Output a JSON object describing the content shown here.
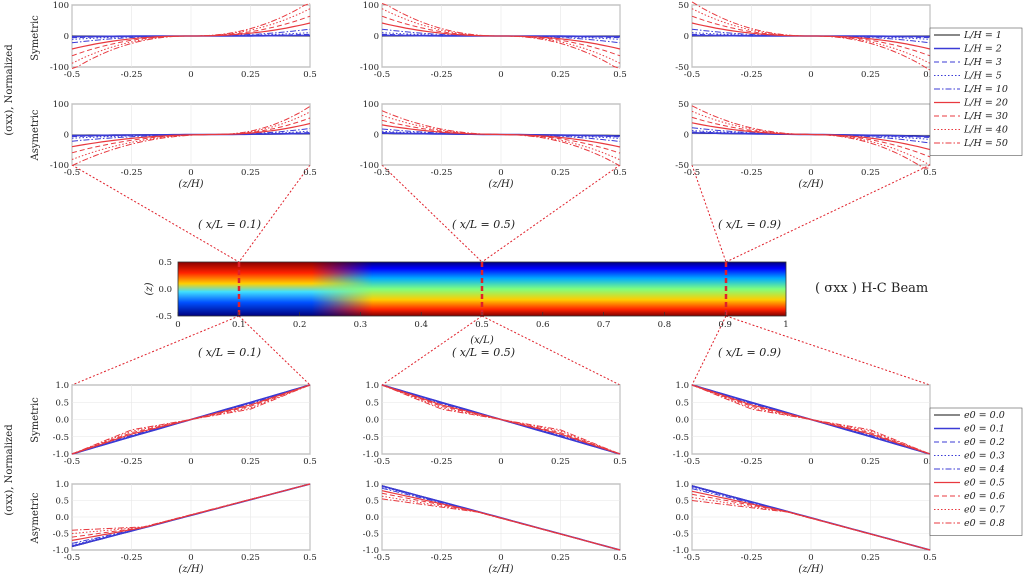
{
  "figure": {
    "top_ylabel": "(σxx), Normalized",
    "bottom_ylabel": "(σxx), Normalized",
    "row_labels": {
      "top_1": "Symetric",
      "top_2": "Asymetric",
      "bottom_1": "Symetric",
      "bottom_2": "Asymetric"
    },
    "x_axis_label": "(z/H)",
    "beam_title": "( σxx ) H-C Beam",
    "beam_xlabel": "(x/L)",
    "beam_ylabel": "(z)",
    "section_labels": [
      "( x/L = 0.1)",
      "( x/L = 0.5)",
      "( x/L = 0.9)"
    ]
  },
  "colors": {
    "blue": "#3b3bd6",
    "red": "#e8393f",
    "black": "#111111",
    "cut": "#e0202a"
  },
  "legend_LH": [
    "L/H = 1",
    "L/H = 2",
    "L/H = 3",
    "L/H = 5",
    "L/H = 10",
    "L/H = 20",
    "L/H = 30",
    "L/H = 40",
    "L/H = 50"
  ],
  "legend_e0": [
    "e0 = 0.0",
    "e0 = 0.1",
    "e0 = 0.2",
    "e0 = 0.3",
    "e0 = 0.4",
    "e0 = 0.5",
    "e0 = 0.6",
    "e0 = 0.7",
    "e0 = 0.8"
  ],
  "chart_data": [
    {
      "type": "line",
      "panel": "top-symmetric-x0.1",
      "x_range": [
        -0.5,
        0.5
      ],
      "ylim": [
        -100,
        100
      ],
      "xticks": [
        "-0.5",
        "-0.25",
        "0",
        "0.25",
        "0.5"
      ],
      "yticks": [
        "100",
        "0",
        "-100"
      ],
      "series": [
        {
          "name": "L/H = 1",
          "x": [
            -0.5,
            0,
            0.5
          ],
          "values": [
            0,
            0,
            0
          ]
        },
        {
          "name": "L/H = 20",
          "x": [
            -0.5,
            0,
            0.5
          ],
          "values": [
            -35,
            0,
            35
          ]
        },
        {
          "name": "L/H = 50",
          "x": [
            -0.5,
            0,
            0.5
          ],
          "values": [
            -110,
            0,
            110
          ]
        }
      ]
    },
    {
      "type": "line",
      "panel": "top-symmetric-x0.5",
      "x_range": [
        -0.5,
        0.5
      ],
      "ylim": [
        -100,
        100
      ],
      "xticks": [
        "-0.5",
        "-0.25",
        "0",
        "0.25",
        "0.5"
      ],
      "yticks": [
        "100",
        "0",
        "-100"
      ],
      "series": [
        {
          "name": "L/H = 1",
          "x": [
            -0.5,
            0,
            0.5
          ],
          "values": [
            0,
            0,
            0
          ]
        },
        {
          "name": "L/H = 20",
          "x": [
            -0.5,
            0,
            0.5
          ],
          "values": [
            35,
            0,
            -35
          ]
        },
        {
          "name": "L/H = 50",
          "x": [
            -0.5,
            0,
            0.5
          ],
          "values": [
            110,
            0,
            -110
          ]
        }
      ]
    },
    {
      "type": "line",
      "panel": "top-symmetric-x0.9",
      "x_range": [
        -0.5,
        0.5
      ],
      "ylim": [
        -50,
        50
      ],
      "xticks": [
        "-0.5",
        "-0.25",
        "0",
        "0.25",
        "0.5"
      ],
      "yticks": [
        "50",
        "0",
        "-50"
      ],
      "series": [
        {
          "name": "L/H = 1",
          "x": [
            -0.5,
            0,
            0.5
          ],
          "values": [
            0,
            0,
            0
          ]
        },
        {
          "name": "L/H = 50",
          "x": [
            -0.5,
            0,
            0.5
          ],
          "values": [
            55,
            0,
            -55
          ]
        }
      ]
    },
    {
      "type": "line",
      "panel": "top-asymmetric-x0.1",
      "x_range": [
        -0.5,
        0.5
      ],
      "ylim": [
        -100,
        100
      ],
      "xticks": [
        "-0.5",
        "-0.25",
        "0",
        "0.25",
        "0.5"
      ],
      "yticks": [
        "100",
        "0",
        "-100"
      ],
      "series": [
        {
          "name": "L/H = 1",
          "x": [
            -0.5,
            0.1,
            0.5
          ],
          "values": [
            -2,
            0,
            2
          ]
        },
        {
          "name": "L/H = 50",
          "x": [
            -0.5,
            0.1,
            0.5
          ],
          "values": [
            -100,
            0,
            90
          ]
        }
      ]
    },
    {
      "type": "line",
      "panel": "top-asymmetric-x0.5",
      "x_range": [
        -0.5,
        0.5
      ],
      "ylim": [
        -100,
        100
      ],
      "xticks": [
        "-0.5",
        "-0.25",
        "0",
        "0.25",
        "0.5"
      ],
      "yticks": [
        "100",
        "0",
        "-100"
      ],
      "series": [
        {
          "name": "L/H = 1",
          "x": [
            -0.5,
            0,
            0.5
          ],
          "values": [
            3,
            0,
            -3
          ]
        },
        {
          "name": "L/H = 50",
          "x": [
            -0.5,
            0,
            0.5
          ],
          "values": [
            75,
            0,
            -100
          ]
        }
      ]
    },
    {
      "type": "line",
      "panel": "top-asymmetric-x0.9",
      "x_range": [
        -0.5,
        0.5
      ],
      "ylim": [
        -50,
        50
      ],
      "xticks": [
        "-0.5",
        "-0.25",
        "0",
        "0.25",
        "0.5"
      ],
      "yticks": [
        "50",
        "0",
        "-50"
      ],
      "series": [
        {
          "name": "L/H = 1",
          "x": [
            -0.5,
            0,
            0.5
          ],
          "values": [
            2,
            0,
            -2
          ]
        },
        {
          "name": "L/H = 50",
          "x": [
            -0.5,
            0,
            0.5
          ],
          "values": [
            45,
            0,
            -60
          ]
        }
      ]
    },
    {
      "type": "heatmap",
      "panel": "beam-sigma-xx",
      "xlim": [
        0,
        1
      ],
      "ylim": [
        -0.5,
        0.5
      ],
      "xticks": [
        "0",
        "0.1",
        "0.2",
        "0.3",
        "0.4",
        "0.5",
        "0.6",
        "0.7",
        "0.8",
        "0.9",
        "1"
      ],
      "yticks": [
        "0.5",
        "0.0",
        "-0.5"
      ],
      "sections_x": [
        0.1,
        0.5,
        0.9
      ]
    },
    {
      "type": "line",
      "panel": "bottom-symmetric-x0.1",
      "x_range": [
        -0.5,
        0.5
      ],
      "ylim": [
        -1,
        1
      ],
      "xticks": [
        "-0.5",
        "-0.25",
        "0",
        "0.25",
        "0.5"
      ],
      "yticks": [
        "1.0",
        "0.5",
        "0.0",
        "-0.5",
        "-1.0"
      ],
      "series": [
        {
          "name": "e0 = 0.0",
          "x": [
            -0.5,
            0,
            0.5
          ],
          "values": [
            -1,
            0,
            1
          ]
        },
        {
          "name": "e0 = 0.8",
          "x": [
            -0.5,
            -0.25,
            0,
            0.25,
            0.5
          ],
          "values": [
            -1,
            -0.3,
            0,
            0.3,
            1
          ]
        }
      ]
    },
    {
      "type": "line",
      "panel": "bottom-symmetric-x0.5",
      "x_range": [
        -0.5,
        0.5
      ],
      "ylim": [
        -1,
        1
      ],
      "xticks": [
        "-0.5",
        "-0.25",
        "0",
        "0.25",
        "0.5"
      ],
      "yticks": [
        "1.0",
        "0.5",
        "0.0",
        "-0.5",
        "-1.0"
      ],
      "series": [
        {
          "name": "e0 = 0.0",
          "x": [
            -0.5,
            0,
            0.5
          ],
          "values": [
            1,
            0,
            -1
          ]
        },
        {
          "name": "e0 = 0.8",
          "x": [
            -0.5,
            -0.25,
            0,
            0.25,
            0.5
          ],
          "values": [
            1,
            0.3,
            0,
            -0.3,
            -1
          ]
        }
      ]
    },
    {
      "type": "line",
      "panel": "bottom-symmetric-x0.9",
      "x_range": [
        -0.5,
        0.5
      ],
      "ylim": [
        -1,
        1
      ],
      "xticks": [
        "-0.5",
        "-0.25",
        "0",
        "0.25",
        "0.5"
      ],
      "yticks": [
        "1.0",
        "0.5",
        "0.0",
        "-0.5",
        "-1.0"
      ],
      "series": [
        {
          "name": "e0 = 0.0",
          "x": [
            -0.5,
            0,
            0.5
          ],
          "values": [
            1,
            0,
            -1
          ]
        },
        {
          "name": "e0 = 0.8",
          "x": [
            -0.5,
            -0.25,
            0,
            0.25,
            0.5
          ],
          "values": [
            1,
            0.3,
            0,
            -0.3,
            -1
          ]
        }
      ]
    },
    {
      "type": "line",
      "panel": "bottom-asymmetric-x0.1",
      "x_range": [
        -0.5,
        0.5
      ],
      "ylim": [
        -1,
        1
      ],
      "xticks": [
        "-0.5",
        "-0.25",
        "0",
        "0.25",
        "0.5"
      ],
      "yticks": [
        "1.0",
        "0.5",
        "0.0",
        "-0.5",
        "-1.0"
      ],
      "series": [
        {
          "name": "e0 = 0.0",
          "x": [
            -0.5,
            0.5
          ],
          "values": [
            -0.9,
            1
          ]
        },
        {
          "name": "e0 = 0.8",
          "x": [
            -0.5,
            -0.2,
            0.5
          ],
          "values": [
            -0.4,
            -0.3,
            1
          ]
        }
      ]
    },
    {
      "type": "line",
      "panel": "bottom-asymmetric-x0.5",
      "x_range": [
        -0.5,
        0.5
      ],
      "ylim": [
        -1,
        1
      ],
      "xticks": [
        "-0.5",
        "-0.25",
        "0",
        "0.25",
        "0.5"
      ],
      "yticks": [
        "1.0",
        "0.5",
        "0.0",
        "-0.5",
        "-1.0"
      ],
      "series": [
        {
          "name": "e0 = 0.0",
          "x": [
            -0.5,
            0.5
          ],
          "values": [
            0.95,
            -1
          ]
        },
        {
          "name": "e0 = 0.8",
          "x": [
            -0.5,
            -0.1,
            0.5
          ],
          "values": [
            0.55,
            0.15,
            -1
          ]
        }
      ]
    },
    {
      "type": "line",
      "panel": "bottom-asymmetric-x0.9",
      "x_range": [
        -0.5,
        0.5
      ],
      "ylim": [
        -1,
        1
      ],
      "xticks": [
        "-0.5",
        "-0.25",
        "0",
        "0.25",
        "0.5"
      ],
      "yticks": [
        "1.0",
        "0.5",
        "0.0",
        "-0.5",
        "-1.0"
      ],
      "series": [
        {
          "name": "e0 = 0.0",
          "x": [
            -0.5,
            0.5
          ],
          "values": [
            0.95,
            -1
          ]
        },
        {
          "name": "e0 = 0.8",
          "x": [
            -0.5,
            -0.1,
            0.5
          ],
          "values": [
            0.5,
            0.15,
            -1
          ]
        }
      ]
    }
  ]
}
